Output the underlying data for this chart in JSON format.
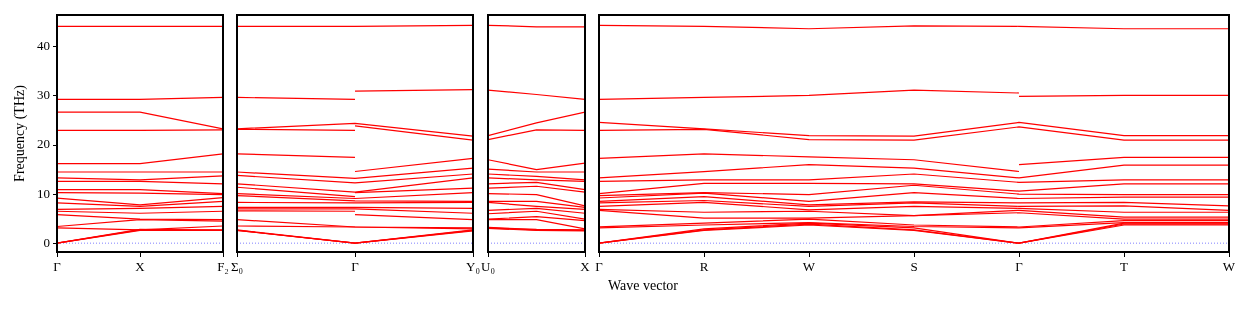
{
  "chart_data": [
    {
      "type": "line",
      "ylabel": "Frequency (THz)",
      "categories": [
        "Γ",
        "X",
        "F₂"
      ],
      "ylim": [
        -1.8,
        46.5
      ],
      "yticks": [
        0,
        10,
        20,
        30,
        40
      ],
      "ref_lines": [
        {
          "axis": "y",
          "value": 0,
          "color": "#8080ff",
          "line_style": "dotted"
        }
      ],
      "series": [
        {
          "color": "#ff0000",
          "values": [
            44.2,
            44.2,
            44.2
          ]
        },
        {
          "color": "#ff0000",
          "values": [
            29.3,
            29.3,
            29.7
          ]
        },
        {
          "color": "#ff0000",
          "values": [
            26.7,
            26.7,
            23.3
          ]
        },
        {
          "color": "#ff0000",
          "values": [
            23.0,
            23.0,
            23.1
          ]
        },
        {
          "color": "#ff0000",
          "values": [
            16.2,
            16.2,
            18.2
          ]
        },
        {
          "color": "#ff0000",
          "values": [
            14.5,
            14.5,
            14.5
          ]
        },
        {
          "color": "#ff0000",
          "values": [
            13.3,
            12.9,
            13.7
          ]
        },
        {
          "color": "#ff0000",
          "values": [
            12.6,
            12.6,
            12.1
          ]
        },
        {
          "color": "#ff0000",
          "values": [
            10.9,
            10.9,
            10.1
          ]
        },
        {
          "color": "#ff0000",
          "values": [
            10.3,
            10.2,
            9.9
          ]
        },
        {
          "color": "#ff0000",
          "values": [
            9.2,
            7.8,
            9.3
          ]
        },
        {
          "color": "#ff0000",
          "values": [
            8.2,
            7.5,
            8.5
          ]
        },
        {
          "color": "#ff0000",
          "values": [
            6.9,
            7.1,
            7.5
          ]
        },
        {
          "color": "#ff0000",
          "values": [
            6.5,
            6.1,
            6.5
          ]
        },
        {
          "color": "#ff0000",
          "values": [
            5.8,
            4.9,
            4.8
          ]
        },
        {
          "color": "#ff0000",
          "values": [
            3.4,
            4.8,
            4.5
          ]
        },
        {
          "color": "#ff0000",
          "values": [
            3.1,
            2.7,
            3.5
          ]
        },
        {
          "color": "#ff0000",
          "values": [
            0,
            2.7,
            2.7
          ]
        },
        {
          "color": "#ff0000",
          "values": [
            0,
            2.6,
            2.6
          ]
        },
        {
          "color": "#ff0000",
          "values": [
            0,
            2.8,
            2.6
          ]
        }
      ]
    },
    {
      "type": "line",
      "categories": [
        "Σ₀",
        "Γ",
        "Y₀"
      ],
      "ylim": [
        -1.8,
        46.5
      ],
      "yticks": [
        0,
        10,
        20,
        30,
        40
      ],
      "tick_labels": "x",
      "ref_lines": [
        {
          "axis": "y",
          "value": 0,
          "color": "#8080ff",
          "line_style": "dotted"
        }
      ],
      "series": [
        {
          "color": "#ff0000",
          "values": [
            44.2,
            44.2,
            44.4
          ]
        },
        {
          "color": "#ff0000",
          "values": [
            29.7,
            29.3,
            null
          ]
        },
        {
          "color": "#ff0000",
          "values": [
            null,
            31.0,
            31.3
          ]
        },
        {
          "color": "#ff0000",
          "values": [
            23.3,
            24.4,
            21.8
          ]
        },
        {
          "color": "#ff0000",
          "values": [
            23.2,
            23.0,
            null
          ]
        },
        {
          "color": "#ff0000",
          "values": [
            null,
            23.9,
            21.0
          ]
        },
        {
          "color": "#ff0000",
          "values": [
            18.2,
            17.5,
            null
          ]
        },
        {
          "color": "#ff0000",
          "values": [
            null,
            14.6,
            17.3
          ]
        },
        {
          "color": "#ff0000",
          "values": [
            14.5,
            13.2,
            15.3
          ]
        },
        {
          "color": "#ff0000",
          "values": [
            13.8,
            12.3,
            14.1
          ]
        },
        {
          "color": "#ff0000",
          "values": [
            12.1,
            10.4,
            13.3
          ]
        },
        {
          "color": "#ff0000",
          "values": [
            11.4,
            9.5,
            null
          ]
        },
        {
          "color": "#ff0000",
          "values": [
            null,
            10.3,
            11.2
          ]
        },
        {
          "color": "#ff0000",
          "values": [
            10.1,
            9.1,
            10.3
          ]
        },
        {
          "color": "#ff0000",
          "values": [
            9.7,
            8.6,
            8.5
          ]
        },
        {
          "color": "#ff0000",
          "values": [
            8.3,
            8.2,
            8.3
          ]
        },
        {
          "color": "#ff0000",
          "values": [
            7.3,
            7.3,
            7.1
          ]
        },
        {
          "color": "#ff0000",
          "values": [
            7.0,
            7.0,
            6.1
          ]
        },
        {
          "color": "#ff0000",
          "values": [
            6.6,
            6.5,
            null
          ]
        },
        {
          "color": "#ff0000",
          "values": [
            null,
            5.8,
            4.8
          ]
        },
        {
          "color": "#ff0000",
          "values": [
            4.8,
            3.3,
            3.1
          ]
        },
        {
          "color": "#ff0000",
          "values": [
            3.5,
            3.3,
            2.9
          ]
        },
        {
          "color": "#ff0000",
          "values": [
            2.7,
            0,
            2.7
          ]
        },
        {
          "color": "#ff0000",
          "values": [
            2.6,
            0,
            2.6
          ]
        },
        {
          "color": "#ff0000",
          "values": [
            2.6,
            0,
            2.5
          ]
        }
      ]
    },
    {
      "type": "line",
      "categories": [
        "U₀",
        null,
        "X"
      ],
      "ylim": [
        -1.8,
        46.5
      ],
      "yticks": [
        0,
        10,
        20,
        30,
        40
      ],
      "tick_labels": "x",
      "ref_lines": [
        {
          "axis": "y",
          "value": 0,
          "color": "#8080ff",
          "line_style": "dotted"
        }
      ],
      "series": [
        {
          "color": "#ff0000",
          "values": [
            44.4,
            44.1,
            44.1
          ]
        },
        {
          "color": "#ff0000",
          "values": [
            31.2,
            30.3,
            29.3
          ]
        },
        {
          "color": "#ff0000",
          "values": [
            21.9,
            24.5,
            26.7
          ]
        },
        {
          "color": "#ff0000",
          "values": [
            21.1,
            23.1,
            23.0
          ]
        },
        {
          "color": "#ff0000",
          "values": [
            17.0,
            15.0,
            16.3
          ]
        },
        {
          "color": "#ff0000",
          "values": [
            15.1,
            14.5,
            14.5
          ]
        },
        {
          "color": "#ff0000",
          "values": [
            14.1,
            13.6,
            12.9
          ]
        },
        {
          "color": "#ff0000",
          "values": [
            13.3,
            12.9,
            12.6
          ]
        },
        {
          "color": "#ff0000",
          "values": [
            12.1,
            12.4,
            10.9
          ]
        },
        {
          "color": "#ff0000",
          "values": [
            11.2,
            11.6,
            10.4
          ]
        },
        {
          "color": "#ff0000",
          "values": [
            10.1,
            9.9,
            7.6
          ]
        },
        {
          "color": "#ff0000",
          "values": [
            8.5,
            8.5,
            7.3
          ]
        },
        {
          "color": "#ff0000",
          "values": [
            8.3,
            7.5,
            6.9
          ]
        },
        {
          "color": "#ff0000",
          "values": [
            6.7,
            7.1,
            6.1
          ]
        },
        {
          "color": "#ff0000",
          "values": [
            6.0,
            6.5,
            4.9
          ]
        },
        {
          "color": "#ff0000",
          "values": [
            4.9,
            5.4,
            4.6
          ]
        },
        {
          "color": "#ff0000",
          "values": [
            4.8,
            4.8,
            2.9
          ]
        },
        {
          "color": "#ff0000",
          "values": [
            3.1,
            2.7,
            2.6
          ]
        },
        {
          "color": "#ff0000",
          "values": [
            3.0,
            2.6,
            2.5
          ]
        },
        {
          "color": "#ff0000",
          "values": [
            3.2,
            2.8,
            2.7
          ]
        }
      ]
    },
    {
      "type": "line",
      "xlabel": "Wave vector",
      "categories": [
        "Γ",
        "R",
        "W",
        "S",
        "Γ",
        "T",
        "W"
      ],
      "ylim": [
        -1.8,
        46.5
      ],
      "yticks": [
        0,
        10,
        20,
        30,
        40
      ],
      "tick_labels": "x",
      "ref_lines": [
        {
          "axis": "y",
          "value": 0,
          "color": "#8080ff",
          "line_style": "dotted"
        }
      ],
      "series": [
        {
          "color": "#ff0000",
          "values": [
            44.4,
            44.2,
            43.7,
            44.3,
            44.2,
            43.7,
            43.7
          ]
        },
        {
          "color": "#ff0000",
          "values": [
            29.3,
            29.7,
            30.1,
            31.2,
            30.6,
            null,
            null
          ]
        },
        {
          "color": "#ff0000",
          "values": [
            null,
            null,
            null,
            null,
            29.9,
            30.1,
            30.1
          ]
        },
        {
          "color": "#ff0000",
          "values": [
            24.6,
            23.3,
            21.9,
            21.8,
            24.6,
            21.9,
            21.9
          ]
        },
        {
          "color": "#ff0000",
          "values": [
            23.0,
            23.2,
            21.1,
            21.0,
            23.7,
            21.0,
            21.0
          ]
        },
        {
          "color": "#ff0000",
          "values": [
            17.3,
            18.2,
            17.6,
            17.0,
            14.6,
            null,
            null
          ]
        },
        {
          "color": "#ff0000",
          "values": [
            null,
            null,
            null,
            null,
            16.0,
            17.5,
            17.5
          ]
        },
        {
          "color": "#ff0000",
          "values": [
            13.3,
            14.6,
            16.0,
            15.3,
            13.3,
            15.9,
            15.9
          ]
        },
        {
          "color": "#ff0000",
          "values": [
            12.6,
            12.9,
            12.9,
            14.1,
            12.4,
            12.9,
            12.9
          ]
        },
        {
          "color": "#ff0000",
          "values": [
            10.1,
            12.2,
            12.2,
            12.1,
            10.6,
            12.1,
            12.1
          ]
        },
        {
          "color": "#ff0000",
          "values": [
            9.7,
            10.3,
            9.9,
            11.8,
            10.0,
            9.9,
            9.9
          ]
        },
        {
          "color": "#ff0000",
          "values": [
            9.2,
            10.2,
            8.5,
            10.3,
            9.1,
            9.4,
            9.4
          ]
        },
        {
          "color": "#ff0000",
          "values": [
            8.5,
            9.5,
            7.8,
            8.4,
            8.2,
            8.3,
            7.6
          ]
        },
        {
          "color": "#ff0000",
          "values": [
            8.2,
            8.7,
            7.5,
            8.2,
            7.5,
            7.6,
            6.7
          ]
        },
        {
          "color": "#ff0000",
          "values": [
            7.5,
            8.3,
            6.8,
            7.5,
            7.1,
            6.3,
            6.3
          ]
        },
        {
          "color": "#ff0000",
          "values": [
            6.9,
            6.3,
            6.5,
            5.6,
            6.7,
            5.3,
            5.3
          ]
        },
        {
          "color": "#ff0000",
          "values": [
            6.7,
            5.1,
            5.1,
            5.6,
            6.2,
            4.9,
            4.9
          ]
        },
        {
          "color": "#ff0000",
          "values": [
            3.3,
            4.1,
            4.9,
            3.7,
            3.3,
            4.6,
            4.6
          ]
        },
        {
          "color": "#ff0000",
          "values": [
            3.1,
            3.7,
            4.2,
            3.4,
            3.1,
            4.2,
            4.2
          ]
        },
        {
          "color": "#ff0000",
          "values": [
            0,
            2.9,
            4.1,
            3.1,
            0,
            4.1,
            4.1
          ]
        },
        {
          "color": "#ff0000",
          "values": [
            0,
            2.7,
            3.9,
            2.7,
            0,
            3.9,
            3.9
          ]
        },
        {
          "color": "#ff0000",
          "values": [
            0,
            2.6,
            3.7,
            2.6,
            0,
            3.7,
            3.7
          ]
        }
      ]
    }
  ]
}
